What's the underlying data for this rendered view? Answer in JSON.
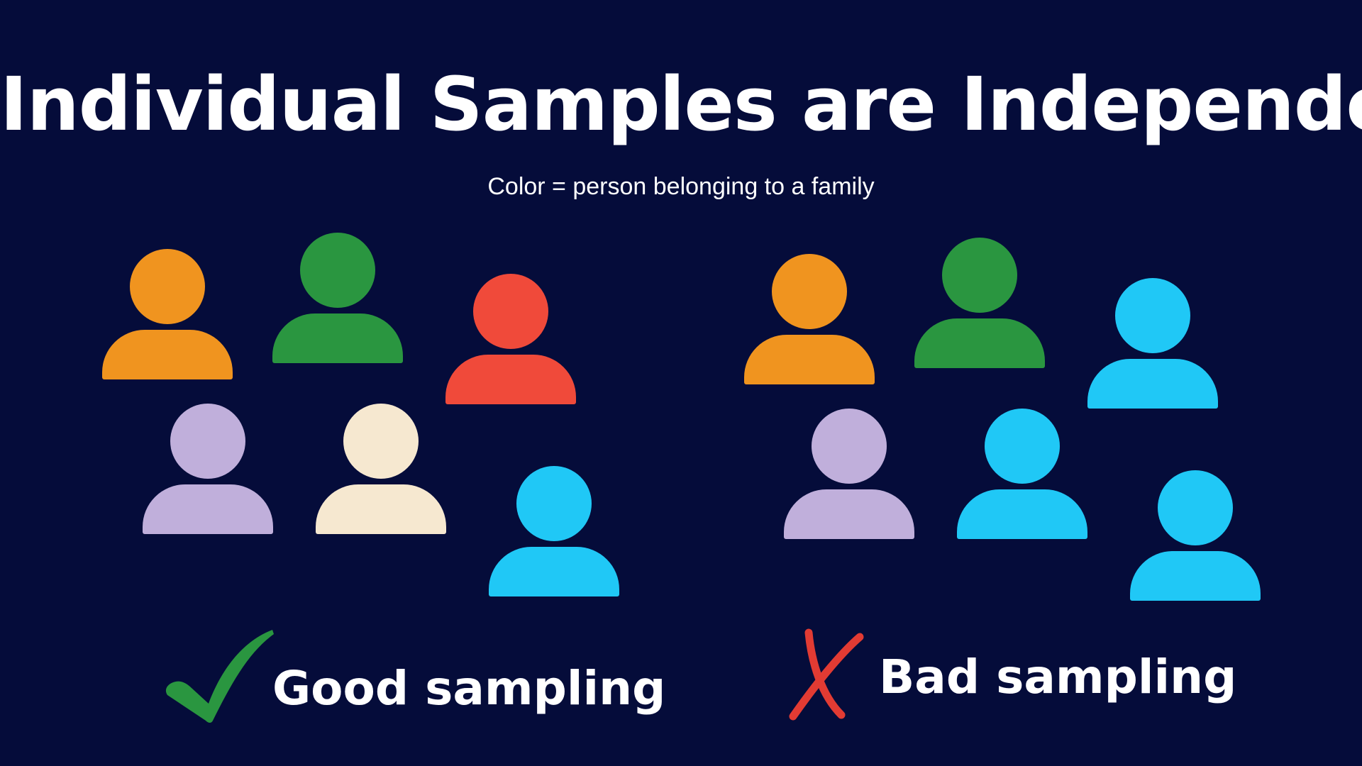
{
  "title": "Individual Samples are Independent",
  "subtitle": "Color = person belonging to a family",
  "colors": {
    "background": "#050c3a",
    "orange": "#f0941f",
    "green": "#2a9640",
    "red": "#f04a3a",
    "lavender": "#c0afdb",
    "cream": "#f6e8d0",
    "cyan": "#20c8f6",
    "check_green": "#2a9640",
    "cross_red": "#e23b33"
  },
  "good_group": {
    "label": "Good sampling",
    "mark_icon": "checkmark-icon",
    "people": [
      {
        "color": "#f0941f"
      },
      {
        "color": "#2a9640"
      },
      {
        "color": "#f04a3a"
      },
      {
        "color": "#c0afdb"
      },
      {
        "color": "#f6e8d0"
      },
      {
        "color": "#20c8f6"
      }
    ]
  },
  "bad_group": {
    "label": "Bad sampling",
    "mark_icon": "cross-icon",
    "people": [
      {
        "color": "#f0941f"
      },
      {
        "color": "#2a9640"
      },
      {
        "color": "#20c8f6"
      },
      {
        "color": "#c0afdb"
      },
      {
        "color": "#20c8f6"
      },
      {
        "color": "#20c8f6"
      }
    ]
  }
}
